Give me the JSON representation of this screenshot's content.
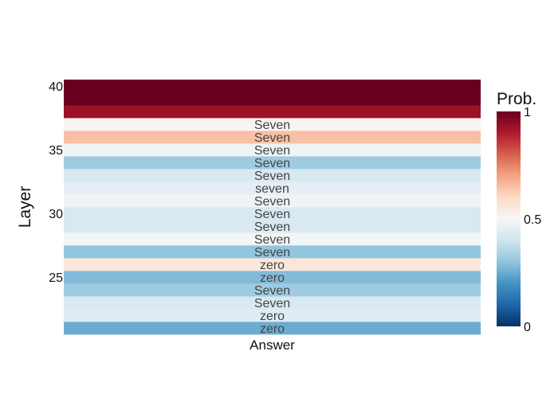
{
  "chart_data": {
    "type": "heatmap",
    "title": "",
    "xlabel": "Answer",
    "ylabel": "Layer",
    "ylim": [
      20.5,
      40.5
    ],
    "y_ticks": [
      25,
      30,
      35,
      40
    ],
    "rows": [
      {
        "layer": 21,
        "label": "zero",
        "prob": 0.25
      },
      {
        "layer": 22,
        "label": "zero",
        "prob": 0.44
      },
      {
        "layer": 23,
        "label": "Seven",
        "prob": 0.42
      },
      {
        "layer": 24,
        "label": "Seven",
        "prob": 0.32
      },
      {
        "layer": 25,
        "label": "zero",
        "prob": 0.28
      },
      {
        "layer": 26,
        "label": "zero",
        "prob": 0.56
      },
      {
        "layer": 27,
        "label": "Seven",
        "prob": 0.3
      },
      {
        "layer": 28,
        "label": "Seven",
        "prob": 0.49
      },
      {
        "layer": 29,
        "label": "Seven",
        "prob": 0.42
      },
      {
        "layer": 30,
        "label": "Seven",
        "prob": 0.42
      },
      {
        "layer": 31,
        "label": "Seven",
        "prob": 0.48
      },
      {
        "layer": 32,
        "label": "seven",
        "prob": 0.45
      },
      {
        "layer": 33,
        "label": "Seven",
        "prob": 0.42
      },
      {
        "layer": 34,
        "label": "Seven",
        "prob": 0.32
      },
      {
        "layer": 35,
        "label": "Seven",
        "prob": 0.48
      },
      {
        "layer": 36,
        "label": "Seven",
        "prob": 0.65
      },
      {
        "layer": 37,
        "label": "Seven",
        "prob": 0.51
      },
      {
        "layer": 38,
        "label": "",
        "prob": 0.93
      },
      {
        "layer": 39,
        "label": "",
        "prob": 1.0
      },
      {
        "layer": 40,
        "label": "",
        "prob": 1.0
      }
    ],
    "colorbar": {
      "title": "Prob.",
      "range": [
        0,
        1
      ],
      "ticks": [
        "0",
        "0.5",
        "1"
      ],
      "colorscale": [
        "#053061",
        "#2166ac",
        "#4393c3",
        "#92c5de",
        "#d1e5f0",
        "#f7f7f7",
        "#fddbc7",
        "#f4a582",
        "#d6604d",
        "#b2182b",
        "#67001f"
      ]
    },
    "grid": false,
    "legend": "colorbar-right"
  }
}
